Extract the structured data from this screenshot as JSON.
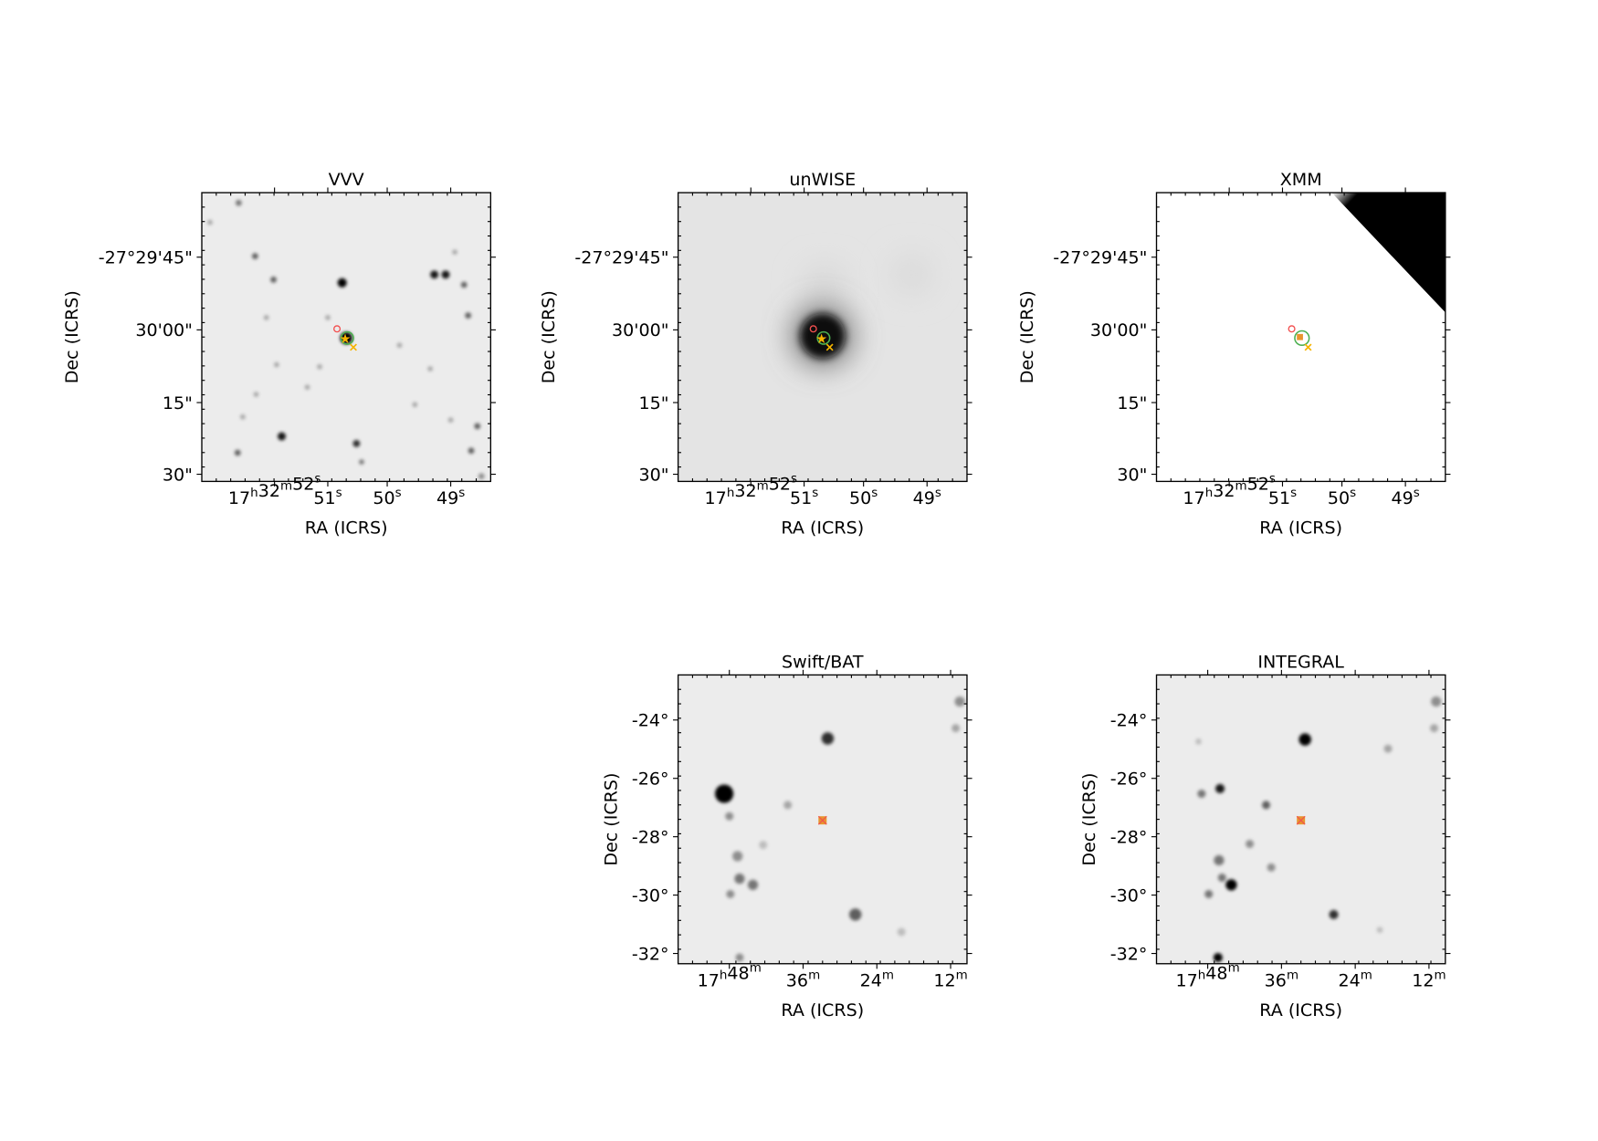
{
  "panels": [
    {
      "title": "VVV",
      "x_label": "RA (ICRS)",
      "y_label": "Dec (ICRS)",
      "x_ticks": [
        "17h32m52s",
        "51s",
        "50s",
        "49s"
      ],
      "y_ticks": [
        "-27°29'45\"",
        "30'00\"",
        "15\"",
        "30\""
      ]
    },
    {
      "title": "unWISE",
      "x_label": "RA (ICRS)",
      "y_label": "Dec (ICRS)",
      "x_ticks": [
        "17h32m52s",
        "51s",
        "50s",
        "49s"
      ],
      "y_ticks": [
        "-27°29'45\"",
        "30'00\"",
        "15\"",
        "30\""
      ]
    },
    {
      "title": "XMM",
      "x_label": "RA (ICRS)",
      "y_label": "Dec (ICRS)",
      "x_ticks": [
        "17h32m52s",
        "51s",
        "50s",
        "49s"
      ],
      "y_ticks": [
        "-27°29'45\"",
        "30'00\"",
        "15\"",
        "30\""
      ]
    },
    {
      "title": "Swift/BAT",
      "x_label": "RA (ICRS)",
      "y_label": "Dec (ICRS)",
      "x_ticks": [
        "17h48m",
        "36m",
        "24m",
        "12m"
      ],
      "y_ticks": [
        "-24°",
        "-26°",
        "-28°",
        "-30°",
        "-32°"
      ]
    },
    {
      "title": "INTEGRAL",
      "x_label": "RA (ICRS)",
      "y_label": "Dec (ICRS)",
      "x_ticks": [
        "17h48m",
        "36m",
        "24m",
        "12m"
      ],
      "y_ticks": [
        "-24°",
        "-26°",
        "-28°",
        "-30°",
        "-32°"
      ]
    }
  ]
}
